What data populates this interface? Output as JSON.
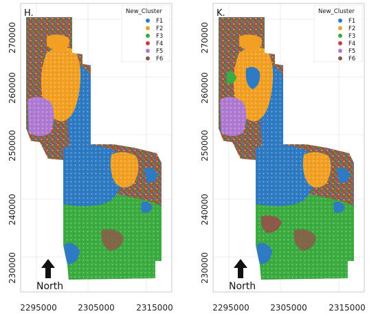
{
  "colors": {
    "F1": "#2e7bc4",
    "F2": "#f2a024",
    "F3": "#3bac3f",
    "F4": "#d23b35",
    "F5": "#b07ad2",
    "F6": "#8d5a4a"
  },
  "legend": {
    "title": "New_Cluster",
    "items": [
      {
        "key": "F1",
        "label": "F1"
      },
      {
        "key": "F2",
        "label": "F2"
      },
      {
        "key": "F3",
        "label": "F3"
      },
      {
        "key": "F4",
        "label": "F4"
      },
      {
        "key": "F5",
        "label": "F5"
      },
      {
        "key": "F6",
        "label": "F6"
      }
    ]
  },
  "north_label": "North",
  "axes": {
    "x_ticks": [
      "2295000",
      "2305000",
      "2315000"
    ],
    "y_ticks": [
      "270000",
      "260000",
      "250000",
      "240000",
      "230000"
    ]
  },
  "panels": [
    {
      "label": "H."
    },
    {
      "label": "K."
    }
  ]
}
